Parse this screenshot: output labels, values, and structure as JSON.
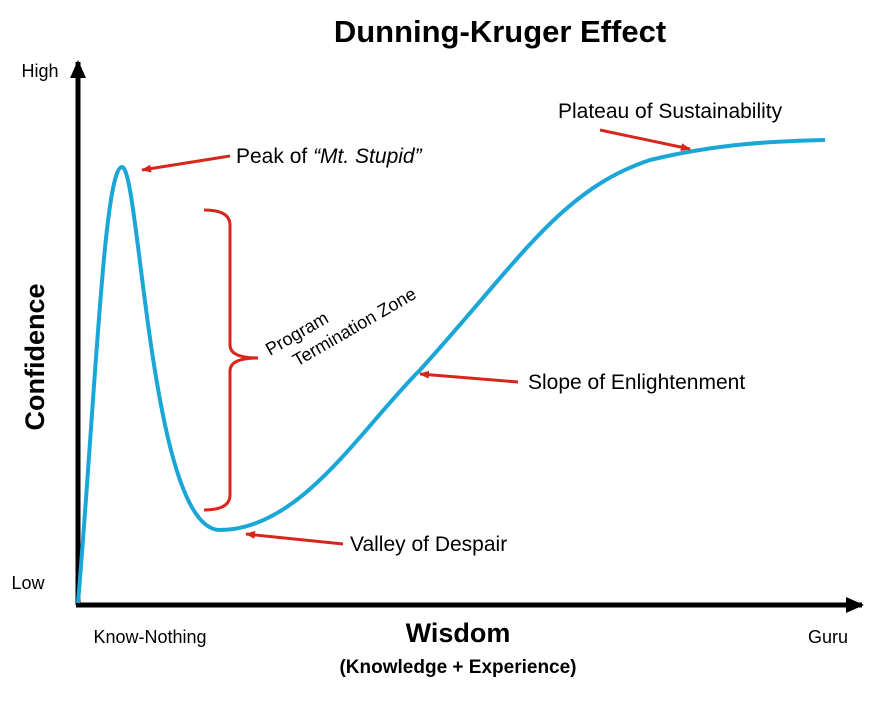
{
  "title": "Dunning-Kruger Effect",
  "axes": {
    "y": {
      "label": "Confidence",
      "high": "High",
      "low": "Low"
    },
    "x": {
      "label": "Wisdom",
      "sublabel": "(Knowledge + Experience)",
      "start": "Know-Nothing",
      "end": "Guru"
    }
  },
  "annotations": {
    "peak": {
      "prefix": "Peak of",
      "name": "“Mt. Stupid”"
    },
    "zone": {
      "line1": "Program",
      "line2": "Termination Zone"
    },
    "slope": "Slope of Enlightenment",
    "valley": "Valley of Despair",
    "plateau": "Plateau of Sustainability"
  }
}
